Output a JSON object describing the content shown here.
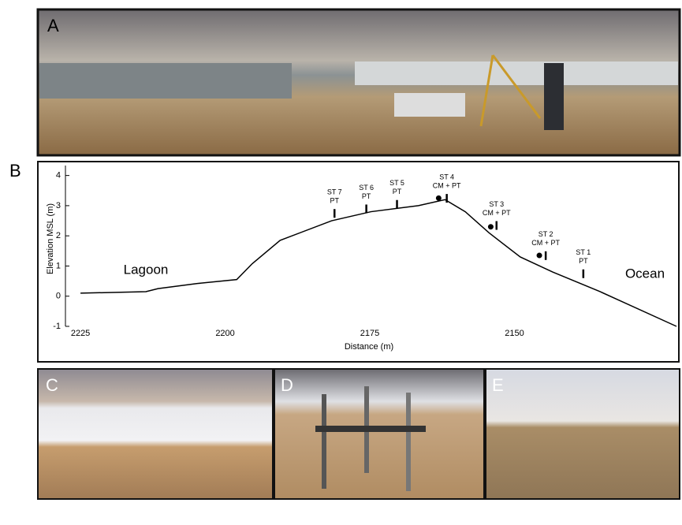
{
  "panels": [
    "A",
    "B",
    "C",
    "D",
    "E"
  ],
  "chart_data": {
    "type": "line",
    "x_label": "Distance (m)",
    "y_label": "Elevation MSL (m)",
    "xlim": [
      2227.6,
      2122
    ],
    "xticks": [
      2225,
      2200,
      2175,
      2150
    ],
    "ylim": [
      -1,
      4.33
    ],
    "yticks": [
      -1,
      0,
      1,
      2,
      3,
      4
    ],
    "series": [
      {
        "color": "#000000",
        "x": [
          2225,
          2213.7,
          2211.6,
          2204.8,
          2198,
          2195.3,
          2190.5,
          2181.6,
          2174.8,
          2166.6,
          2162,
          2158.5,
          2154.4,
          2149,
          2143.4,
          2135.2,
          2122
        ],
        "values": [
          0.1,
          0.15,
          0.25,
          0.42,
          0.55,
          1.08,
          1.85,
          2.5,
          2.8,
          3.0,
          3.2,
          2.8,
          2.1,
          1.3,
          0.8,
          0.15,
          -1.0
        ]
      }
    ],
    "annotations": [
      "Lagoon",
      "Ocean"
    ],
    "stations": [
      {
        "name": "ST 7",
        "sensors": "PT",
        "x": 2181.1,
        "y": 2.6
      },
      {
        "name": "ST 6",
        "sensors": "PT",
        "x": 2175.6,
        "y": 2.75
      },
      {
        "name": "ST 5",
        "sensors": "PT",
        "x": 2170.3,
        "y": 2.9
      },
      {
        "name": "ST 4",
        "sensors": "CM + PT",
        "x": 2161.7,
        "y": 3.1
      },
      {
        "name": "ST 3",
        "sensors": "CM + PT",
        "x": 2153.1,
        "y": 2.2
      },
      {
        "name": "ST 2",
        "sensors": "CM + PT",
        "x": 2144.6,
        "y": 1.2
      },
      {
        "name": "ST 1",
        "sensors": "PT",
        "x": 2138.1,
        "y": 0.6
      }
    ],
    "cm_points": {
      "x": [
        2163.1,
        2154.1,
        2145.7
      ],
      "y": [
        3.25,
        2.3,
        1.35
      ]
    }
  }
}
